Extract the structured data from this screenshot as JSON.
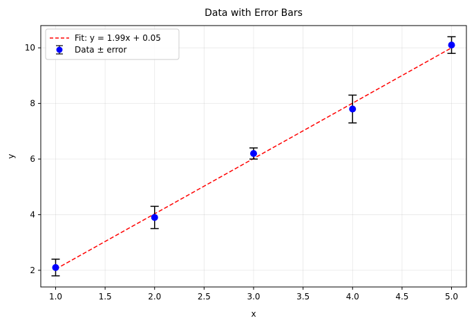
{
  "chart_data": {
    "type": "scatter",
    "title": "Data with Error Bars",
    "xlabel": "x",
    "ylabel": "y",
    "xlim": [
      0.85,
      5.15
    ],
    "ylim": [
      1.4,
      10.8
    ],
    "xticks": [
      1.0,
      1.5,
      2.0,
      2.5,
      3.0,
      3.5,
      4.0,
      4.5,
      5.0
    ],
    "xtick_labels": [
      "1.0",
      "1.5",
      "2.0",
      "2.5",
      "3.0",
      "3.5",
      "4.0",
      "4.5",
      "5.0"
    ],
    "yticks": [
      2,
      4,
      6,
      8,
      10
    ],
    "ytick_labels": [
      "2",
      "4",
      "6",
      "8",
      "10"
    ],
    "grid": true,
    "legend_position": "top-left",
    "series": [
      {
        "name": "Data ± error",
        "kind": "errorbar",
        "x": [
          1,
          2,
          3,
          4,
          5
        ],
        "y": [
          2.1,
          3.9,
          6.2,
          7.8,
          10.1
        ],
        "yerr": [
          0.3,
          0.4,
          0.2,
          0.5,
          0.3
        ],
        "color": "#0000ff",
        "errcolor": "#000000"
      },
      {
        "name": "Fit: y = 1.99x + 0.05",
        "kind": "line",
        "slope": 1.99,
        "intercept": 0.05,
        "x": [
          1,
          5
        ],
        "color": "#ff0000",
        "linestyle": "dashed"
      }
    ]
  }
}
